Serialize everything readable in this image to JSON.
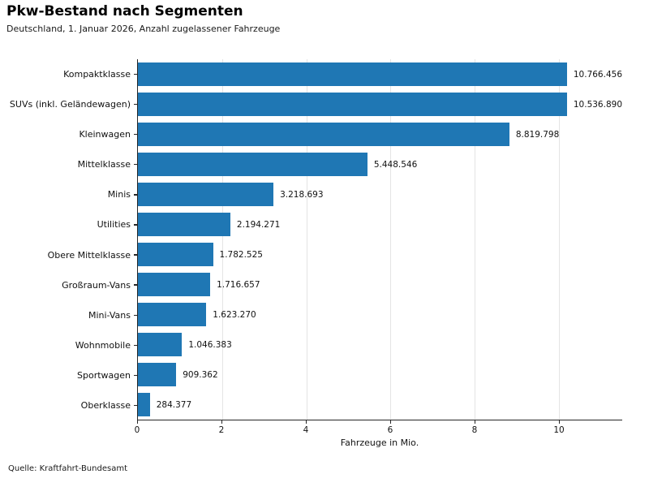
{
  "source": "Quelle: Kraftfahrt-Bundesamt",
  "colors": {
    "bar": "#1f77b4",
    "grid": "#e4e4e4",
    "axis": "#262626",
    "text": "#000000"
  },
  "chart_data": {
    "type": "bar",
    "orientation": "horizontal",
    "title": "Pkw-Bestand nach Segmenten",
    "subtitle": "Deutschland, 1. Januar 2026, Anzahl zugelassener Fahrzeuge",
    "xlabel": "Fahrzeuge in Mio.",
    "xlim": [
      0,
      11.5
    ],
    "xticks": [
      0,
      2,
      4,
      6,
      8,
      10
    ],
    "grid": true,
    "legend": false,
    "categories": [
      "Kompaktklasse",
      "SUVs (inkl. Geländewagen)",
      "Kleinwagen",
      "Mittelklasse",
      "Minis",
      "Utilities",
      "Obere Mittelklasse",
      "Großraum-Vans",
      "Mini-Vans",
      "Wohnmobile",
      "Sportwagen",
      "Oberklasse"
    ],
    "values": [
      10766456,
      10536890,
      8819798,
      5448546,
      3218693,
      2194271,
      1782525,
      1716657,
      1623270,
      1046383,
      909362,
      284377
    ],
    "values_mio": [
      10.766456,
      10.53689,
      8.819798,
      5.448546,
      3.218693,
      2.194271,
      1.782525,
      1.716657,
      1.62327,
      1.046383,
      0.909362,
      0.284377
    ],
    "value_labels": [
      "10.766.456",
      "10.536.890",
      "8.819.798",
      "5.448.546",
      "3.218.693",
      "2.194.271",
      "1.782.525",
      "1.716.657",
      "1.623.270",
      "1.046.383",
      "909.362",
      "284.377"
    ]
  }
}
